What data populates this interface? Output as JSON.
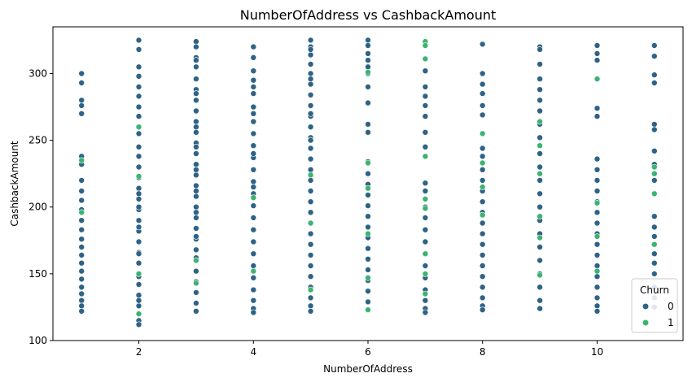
{
  "chart_data": {
    "type": "scatter",
    "title": "NumberOfAddress vs CashbackAmount",
    "xlabel": "NumberOfAddress",
    "ylabel": "CashbackAmount",
    "xlim": [
      0.5,
      11.5
    ],
    "ylim": [
      100,
      335
    ],
    "xticks": [
      2,
      4,
      6,
      8,
      10
    ],
    "yticks": [
      100,
      150,
      200,
      250,
      300
    ],
    "grid": false,
    "legend": {
      "title": "Churn",
      "placement": "lower-right"
    },
    "series": [
      {
        "name": "0",
        "color": "#2e6386",
        "x": [
          1,
          1,
          1,
          1,
          1,
          1,
          1,
          1,
          1,
          1,
          1,
          1,
          1,
          1,
          1,
          1,
          1,
          1,
          1,
          1,
          1,
          1,
          1,
          1,
          2,
          2,
          2,
          2,
          2,
          2,
          2,
          2,
          2,
          2,
          2,
          2,
          2,
          2,
          2,
          2,
          2,
          2,
          2,
          2,
          2,
          2,
          2,
          2,
          2,
          2,
          2,
          2,
          2,
          2,
          2,
          2,
          2,
          2,
          3,
          3,
          3,
          3,
          3,
          3,
          3,
          3,
          3,
          3,
          3,
          3,
          3,
          3,
          3,
          3,
          3,
          3,
          3,
          3,
          3,
          3,
          3,
          3,
          3,
          3,
          3,
          3,
          3,
          3,
          3,
          3,
          3,
          3,
          3,
          3,
          4,
          4,
          4,
          4,
          4,
          4,
          4,
          4,
          4,
          4,
          4,
          4,
          4,
          4,
          4,
          4,
          4,
          4,
          4,
          4,
          4,
          4,
          4,
          4,
          4,
          4,
          4,
          4,
          5,
          5,
          5,
          5,
          5,
          5,
          5,
          5,
          5,
          5,
          5,
          5,
          5,
          5,
          5,
          5,
          5,
          5,
          5,
          5,
          5,
          5,
          5,
          5,
          5,
          5,
          5,
          5,
          5,
          5,
          5,
          5,
          5,
          6,
          6,
          6,
          6,
          6,
          6,
          6,
          6,
          6,
          6,
          6,
          6,
          6,
          6,
          6,
          6,
          6,
          6,
          6,
          6,
          6,
          6,
          6,
          6,
          6,
          7,
          7,
          7,
          7,
          7,
          7,
          7,
          7,
          7,
          7,
          7,
          7,
          7,
          7,
          7,
          7,
          7,
          7,
          7,
          7,
          7,
          8,
          8,
          8,
          8,
          8,
          8,
          8,
          8,
          8,
          8,
          8,
          8,
          8,
          8,
          8,
          8,
          8,
          8,
          8,
          8,
          8,
          8,
          8,
          8,
          9,
          9,
          9,
          9,
          9,
          9,
          9,
          9,
          9,
          9,
          9,
          9,
          9,
          9,
          9,
          9,
          9,
          9,
          9,
          9,
          9,
          9,
          10,
          10,
          10,
          10,
          10,
          10,
          10,
          10,
          10,
          10,
          10,
          10,
          10,
          10,
          10,
          10,
          10,
          10,
          10,
          10,
          10,
          10,
          11,
          11,
          11,
          11,
          11,
          11,
          11,
          11,
          11,
          11,
          11,
          11,
          11,
          11,
          11,
          11,
          11,
          11
        ],
        "y": [
          300,
          293,
          280,
          276,
          270,
          238,
          232,
          220,
          212,
          205,
          198,
          190,
          183,
          176,
          170,
          164,
          158,
          152,
          146,
          140,
          135,
          130,
          126,
          122,
          325,
          318,
          305,
          298,
          290,
          283,
          275,
          268,
          255,
          245,
          238,
          230,
          222,
          214,
          206,
          198,
          190,
          182,
          174,
          166,
          158,
          150,
          142,
          134,
          126,
          120,
          115,
          112,
          200,
          210,
          185,
          165,
          148,
          130,
          324,
          320,
          312,
          305,
          296,
          288,
          280,
          272,
          264,
          256,
          248,
          240,
          232,
          224,
          216,
          208,
          200,
          192,
          184,
          176,
          168,
          160,
          152,
          144,
          136,
          128,
          122,
          310,
          285,
          260,
          245,
          228,
          212,
          196,
          178,
          162,
          320,
          312,
          302,
          295,
          285,
          275,
          264,
          255,
          246,
          237,
          228,
          219,
          210,
          201,
          192,
          183,
          174,
          165,
          156,
          147,
          138,
          130,
          124,
          121,
          290,
          270,
          240,
          215,
          325,
          320,
          314,
          307,
          300,
          292,
          284,
          276,
          268,
          260,
          252,
          244,
          236,
          228,
          220,
          212,
          204,
          196,
          188,
          180,
          172,
          164,
          156,
          148,
          140,
          132,
          126,
          122,
          318,
          296,
          270,
          250,
          180,
          325,
          321,
          315,
          305,
          300,
          290,
          278,
          262,
          256,
          234,
          225,
          217,
          209,
          201,
          193,
          185,
          177,
          169,
          161,
          153,
          145,
          137,
          129,
          123,
          310,
          322,
          302,
          290,
          283,
          276,
          268,
          256,
          245,
          218,
          212,
          200,
          192,
          183,
          174,
          165,
          156,
          147,
          138,
          130,
          124,
          121,
          322,
          300,
          292,
          285,
          276,
          269,
          255,
          244,
          238,
          228,
          220,
          212,
          204,
          196,
          188,
          180,
          172,
          164,
          156,
          148,
          140,
          132,
          126,
          123,
          320,
          318,
          307,
          296,
          288,
          280,
          272,
          262,
          252,
          240,
          230,
          220,
          210,
          200,
          190,
          180,
          170,
          160,
          150,
          140,
          130,
          124,
          321,
          315,
          310,
          296,
          274,
          268,
          236,
          228,
          220,
          212,
          204,
          196,
          188,
          180,
          172,
          164,
          156,
          148,
          140,
          132,
          126,
          122,
          321,
          313,
          299,
          293,
          262,
          258,
          242,
          232,
          220,
          193,
          185,
          178,
          165,
          158,
          150,
          140,
          132,
          125
        ]
      },
      {
        "name": "1",
        "color": "#3cb371",
        "x": [
          1,
          1,
          2,
          2,
          2,
          2,
          3,
          3,
          4,
          4,
          5,
          5,
          5,
          6,
          6,
          6,
          6,
          6,
          6,
          7,
          7,
          7,
          7,
          7,
          7,
          7,
          7,
          7,
          8,
          8,
          8,
          8,
          9,
          9,
          9,
          9,
          9,
          9,
          10,
          10,
          10,
          10,
          11,
          11,
          11,
          11
        ],
        "y": [
          235,
          196,
          260,
          223,
          150,
          120,
          143,
          160,
          207,
          152,
          224,
          188,
          138,
          301,
          233,
          214,
          180,
          123,
          147,
          324,
          321,
          311,
          238,
          206,
          199,
          165,
          150,
          135,
          255,
          233,
          215,
          194,
          264,
          246,
          225,
          193,
          177,
          149,
          296,
          203,
          178,
          152,
          230,
          225,
          210,
          172
        ]
      }
    ]
  }
}
